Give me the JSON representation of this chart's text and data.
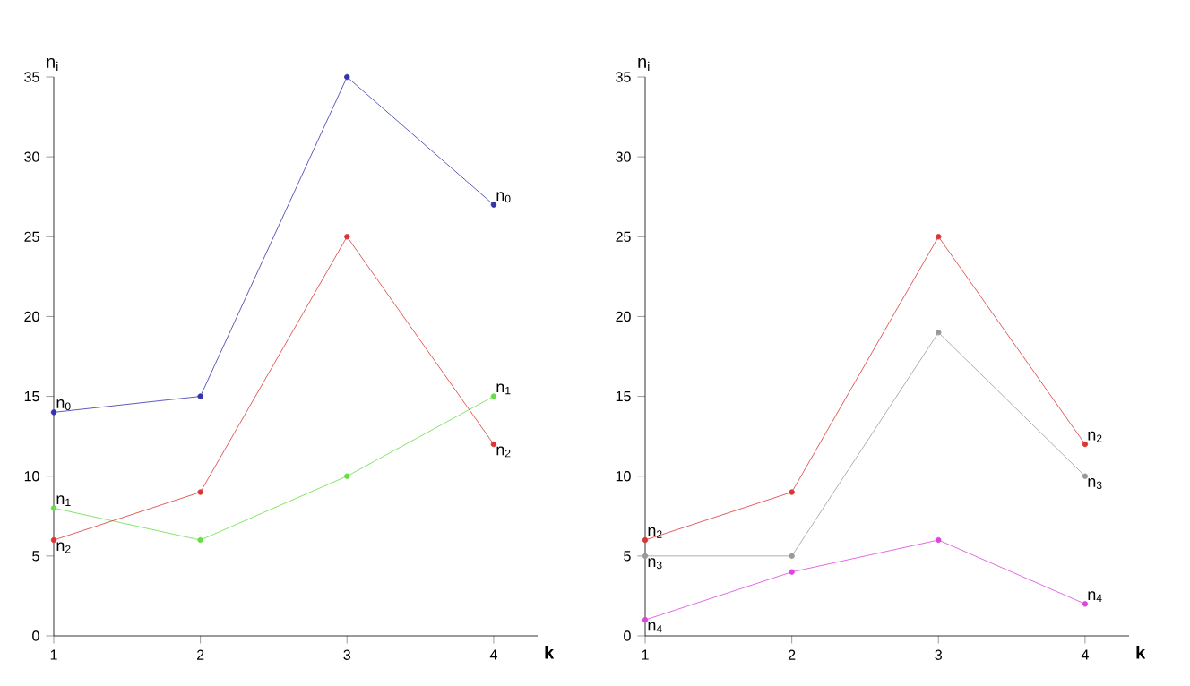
{
  "chart_data": [
    {
      "type": "line",
      "xlabel": "k",
      "ylabel": "n$_{i}$",
      "x": [
        1,
        2,
        3,
        4
      ],
      "xlim": [
        1,
        4.3
      ],
      "xticks": [
        1,
        2,
        3,
        4
      ],
      "ylim": [
        0,
        35
      ],
      "yticks": [
        0,
        5,
        10,
        15,
        20,
        25,
        30,
        35
      ],
      "marker": "circle",
      "line_style": "solid",
      "series": [
        {
          "name": "n$_{0}$",
          "color": "#3333aa",
          "values": [
            14,
            15,
            35,
            27
          ]
        },
        {
          "name": "n$_{1}$",
          "color": "#66dd44",
          "values": [
            8,
            6,
            10,
            15
          ]
        },
        {
          "name": "n$_{2}$",
          "color": "#dd3333",
          "values": [
            6,
            9,
            25,
            12
          ]
        }
      ]
    },
    {
      "type": "line",
      "xlabel": "k",
      "ylabel": "n$_{i}$",
      "x": [
        1,
        2,
        3,
        4
      ],
      "xlim": [
        1,
        4.3
      ],
      "xticks": [
        1,
        2,
        3,
        4
      ],
      "ylim": [
        0,
        35
      ],
      "yticks": [
        0,
        5,
        10,
        15,
        20,
        25,
        30,
        35
      ],
      "marker": "circle",
      "line_style": "solid",
      "series": [
        {
          "name": "n$_{2}$",
          "color": "#dd3333",
          "values": [
            6,
            9,
            25,
            12
          ]
        },
        {
          "name": "n$_{3}$",
          "color": "#999999",
          "values": [
            5,
            5,
            19,
            10
          ]
        },
        {
          "name": "n$_{4}$",
          "color": "#dd44dd",
          "values": [
            1,
            4,
            6,
            2
          ]
        }
      ]
    }
  ]
}
